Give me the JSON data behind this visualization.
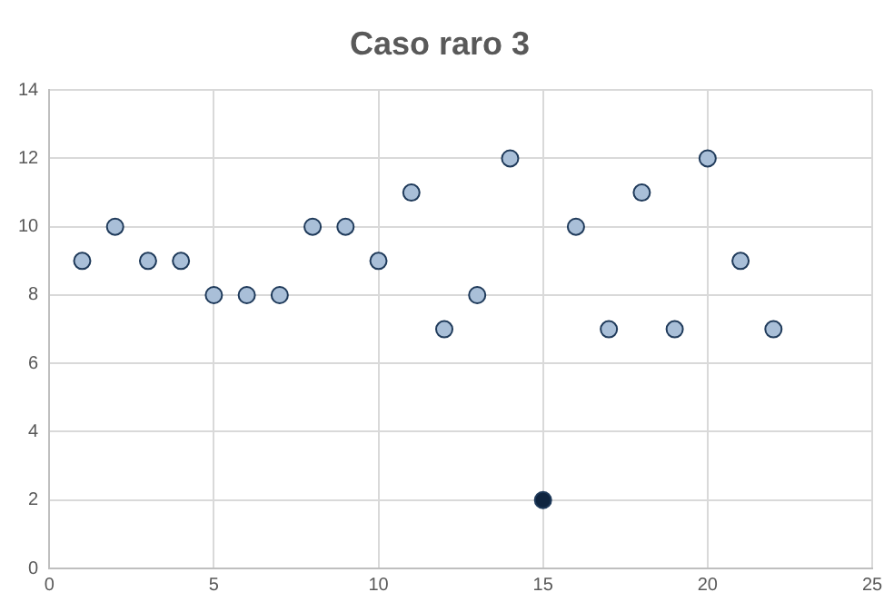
{
  "chart_data": {
    "type": "scatter",
    "title": "Caso raro 3",
    "x": [
      1,
      2,
      3,
      4,
      5,
      6,
      7,
      8,
      9,
      10,
      11,
      12,
      13,
      14,
      15,
      16,
      17,
      18,
      19,
      20,
      21,
      22
    ],
    "values": [
      9,
      10,
      9,
      9,
      8,
      8,
      8,
      10,
      10,
      9,
      11,
      7,
      8,
      12,
      2,
      10,
      7,
      11,
      7,
      12,
      9,
      7
    ],
    "colors": [
      "#a9bfd8",
      "#a9bfd8",
      "#a9bfd8",
      "#a9bfd8",
      "#a9bfd8",
      "#a9bfd8",
      "#a9bfd8",
      "#a9bfd8",
      "#a9bfd8",
      "#a9bfd8",
      "#a9bfd8",
      "#a9bfd8",
      "#a9bfd8",
      "#a9bfd8",
      "#0f2540",
      "#a9bfd8",
      "#a9bfd8",
      "#a9bfd8",
      "#a9bfd8",
      "#a9bfd8",
      "#a9bfd8",
      "#a9bfd8"
    ],
    "xlim": [
      0,
      25
    ],
    "xticks": [
      0,
      5,
      10,
      15,
      20,
      25
    ],
    "ylim": [
      0,
      14
    ],
    "yticks": [
      0,
      2,
      4,
      6,
      8,
      10,
      12,
      14
    ],
    "grid": true,
    "marker": "circle"
  }
}
